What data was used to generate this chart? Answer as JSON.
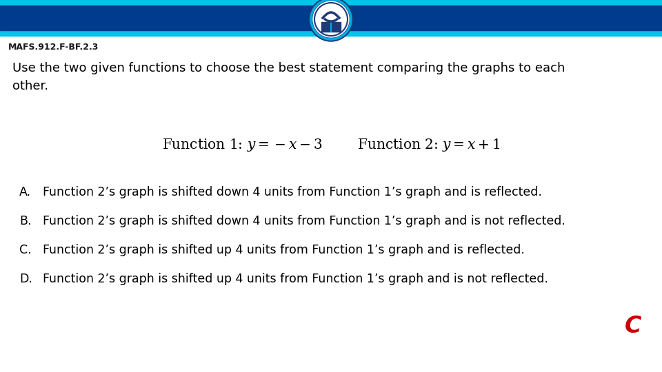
{
  "title_code": "MAFS.912.F-BF.2.3",
  "header_stripe_color_light": "#00C4E8",
  "header_stripe_color_dark": "#003B8E",
  "bg_color": "#FFFFFF",
  "question_text_line1": "Use the two given functions to choose the best statement comparing the graphs to each",
  "question_text_line2": "other.",
  "choices": [
    "Function 2’s graph is shifted down 4 units from Function 1’s graph and is reflected.",
    "Function 2’s graph is shifted down 4 units from Function 1’s graph and is not reflected.",
    "Function 2’s graph is shifted up 4 units from Function 1’s graph and is reflected.",
    "Function 2’s graph is shifted up 4 units from Function 1’s graph and is not reflected."
  ],
  "choice_labels": [
    "A.",
    "B.",
    "C.",
    "D."
  ],
  "answer": "C",
  "answer_color": "#CC0000",
  "text_color": "#000000",
  "code_color": "#1a1a1a",
  "logo_color_dark": "#1E3A78",
  "logo_color_light": "#00AADD"
}
